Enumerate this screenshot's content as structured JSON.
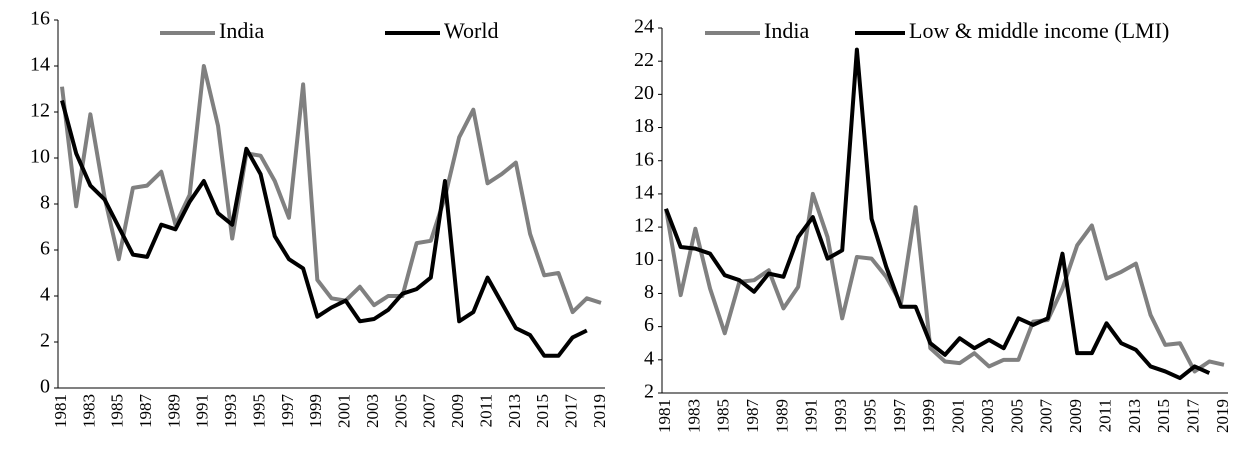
{
  "chart_data": [
    {
      "type": "line",
      "categories": [
        "1981",
        null,
        "1983",
        null,
        "1985",
        null,
        "1987",
        null,
        "1989",
        null,
        "1991",
        null,
        "1993",
        null,
        "1995",
        null,
        "1997",
        null,
        "1999",
        null,
        "2001",
        null,
        "2003",
        null,
        "2005",
        null,
        "2007",
        null,
        "2009",
        null,
        "2011",
        null,
        "2013",
        null,
        "2015",
        null,
        "2017",
        null,
        "2019"
      ],
      "series": [
        {
          "name": "India",
          "color": "#808080",
          "values": [
            13.1,
            7.9,
            11.9,
            8.3,
            5.6,
            8.7,
            8.8,
            9.4,
            7.1,
            8.4,
            14.0,
            11.4,
            6.5,
            10.2,
            10.1,
            9.0,
            7.4,
            13.2,
            4.7,
            3.9,
            3.8,
            4.4,
            3.6,
            4.0,
            4.0,
            6.3,
            6.4,
            8.3,
            10.9,
            12.1,
            8.9,
            9.3,
            9.8,
            6.7,
            4.9,
            5.0,
            3.3,
            3.9,
            3.7
          ]
        },
        {
          "name": "World",
          "color": "#000000",
          "values": [
            12.5,
            10.2,
            8.8,
            8.2,
            7.0,
            5.8,
            5.7,
            7.1,
            6.9,
            8.1,
            9.0,
            7.6,
            7.1,
            10.4,
            9.3,
            6.6,
            5.6,
            5.2,
            3.1,
            3.5,
            3.8,
            2.9,
            3.0,
            3.4,
            4.1,
            4.3,
            4.8,
            9.0,
            2.9,
            3.3,
            4.8,
            3.7,
            2.6,
            2.3,
            1.4,
            1.4,
            2.2,
            2.5,
            null
          ]
        }
      ],
      "ylim": [
        0,
        16
      ],
      "yticks": [
        0,
        2,
        4,
        6,
        8,
        10,
        12,
        14,
        16
      ],
      "grid": false
    },
    {
      "type": "line",
      "categories": [
        "1981",
        null,
        "1983",
        null,
        "1985",
        null,
        "1987",
        null,
        "1989",
        null,
        "1991",
        null,
        "1993",
        null,
        "1995",
        null,
        "1997",
        null,
        "1999",
        null,
        "2001",
        null,
        "2003",
        null,
        "2005",
        null,
        "2007",
        null,
        "2009",
        null,
        "2011",
        null,
        "2013",
        null,
        "2015",
        null,
        "2017",
        null,
        "2019"
      ],
      "series": [
        {
          "name": "India",
          "color": "#808080",
          "values": [
            13.1,
            7.9,
            11.9,
            8.3,
            5.6,
            8.7,
            8.8,
            9.4,
            7.1,
            8.4,
            14.0,
            11.4,
            6.5,
            10.2,
            10.1,
            9.0,
            7.4,
            13.2,
            4.7,
            3.9,
            3.8,
            4.4,
            3.6,
            4.0,
            4.0,
            6.3,
            6.4,
            8.3,
            10.9,
            12.1,
            8.9,
            9.3,
            9.8,
            6.7,
            4.9,
            5.0,
            3.3,
            3.9,
            3.7
          ]
        },
        {
          "name": "Low & middle income (LMI)",
          "color": "#000000",
          "values": [
            13.1,
            10.8,
            10.7,
            10.4,
            9.1,
            8.8,
            8.1,
            9.2,
            9.0,
            11.4,
            12.6,
            10.1,
            10.6,
            22.7,
            12.5,
            9.6,
            7.2,
            7.2,
            5.0,
            4.3,
            5.3,
            4.7,
            5.2,
            4.7,
            6.5,
            6.1,
            6.5,
            10.4,
            4.4,
            4.4,
            6.2,
            5.0,
            4.6,
            3.6,
            3.3,
            2.9,
            3.6,
            3.2,
            null
          ]
        }
      ],
      "ylim": [
        2,
        24
      ],
      "yticks": [
        2,
        4,
        6,
        8,
        10,
        12,
        14,
        16,
        18,
        20,
        22,
        24
      ],
      "grid": false
    }
  ]
}
